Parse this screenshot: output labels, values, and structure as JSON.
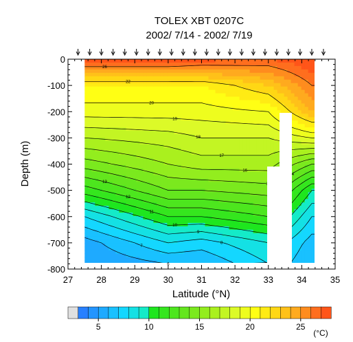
{
  "chart_data": {
    "type": "heatmap",
    "title": "TOLEX XBT 0207C",
    "subtitle": "2002/ 7/14 - 2002/ 7/19",
    "xlabel": "Latitude (°N)",
    "ylabel": "Depth (m)",
    "xlim": [
      27,
      35
    ],
    "ylim": [
      -800,
      0
    ],
    "x_ticks": [
      "27",
      "28",
      "29",
      "30",
      "31",
      "32",
      "33",
      "34",
      "35"
    ],
    "y_ticks": [
      "0",
      "-100",
      "-200",
      "-300",
      "-400",
      "-500",
      "-600",
      "-700",
      "-800"
    ],
    "variable": "temperature",
    "units": "(°C)",
    "colorbar_ticks": [
      "5",
      "10",
      "15",
      "20",
      "25"
    ],
    "colorbar_range": [
      2,
      28
    ],
    "station_latitudes": [
      27.3,
      27.65,
      28.0,
      28.35,
      28.7,
      29.05,
      29.4,
      29.75,
      30.1,
      30.45,
      30.8,
      31.15,
      31.5,
      31.85,
      32.2,
      32.55,
      32.9,
      33.25,
      33.6,
      33.95,
      34.3,
      34.65
    ],
    "temperature_profile_samples": [
      {
        "lat": 27.5,
        "depth": [
          0,
          -100,
          -200,
          -300,
          -400,
          -500,
          -600,
          -700,
          -780
        ],
        "temp": [
          28,
          21,
          19.5,
          17,
          14.5,
          11.5,
          8,
          5.5,
          5
        ]
      },
      {
        "lat": 30.0,
        "depth": [
          0,
          -100,
          -200,
          -300,
          -400,
          -500,
          -600,
          -700,
          -780
        ],
        "temp": [
          28,
          21,
          19.5,
          17.5,
          16,
          14,
          11,
          8,
          6
        ]
      },
      {
        "lat": 31.0,
        "depth": [
          0,
          -100,
          -200,
          -300,
          -400,
          -500,
          -600,
          -700,
          -780
        ],
        "temp": [
          27.5,
          21,
          19.5,
          18,
          16.5,
          14,
          11,
          7.5,
          6
        ]
      },
      {
        "lat": 33.0,
        "depth": [
          0,
          -100,
          -200,
          -300,
          -400,
          -500,
          -600,
          -700,
          -780
        ],
        "temp": [
          27,
          23,
          20,
          18,
          16.5,
          14.5,
          12,
          9,
          8
        ]
      },
      {
        "lat": 34.3,
        "depth": [
          0,
          -100,
          -200,
          -300,
          -400,
          -500,
          -600,
          -700,
          -780
        ],
        "temp": [
          28,
          26,
          24,
          19,
          14,
          10,
          8,
          6.5,
          6
        ]
      }
    ],
    "contour_labels": [
      "26",
      "22",
      "20",
      "19",
      "18",
      "17",
      "16",
      "15",
      "14",
      "13",
      "12",
      "11",
      "10",
      "9",
      "8",
      "7",
      "6",
      "5"
    ]
  }
}
